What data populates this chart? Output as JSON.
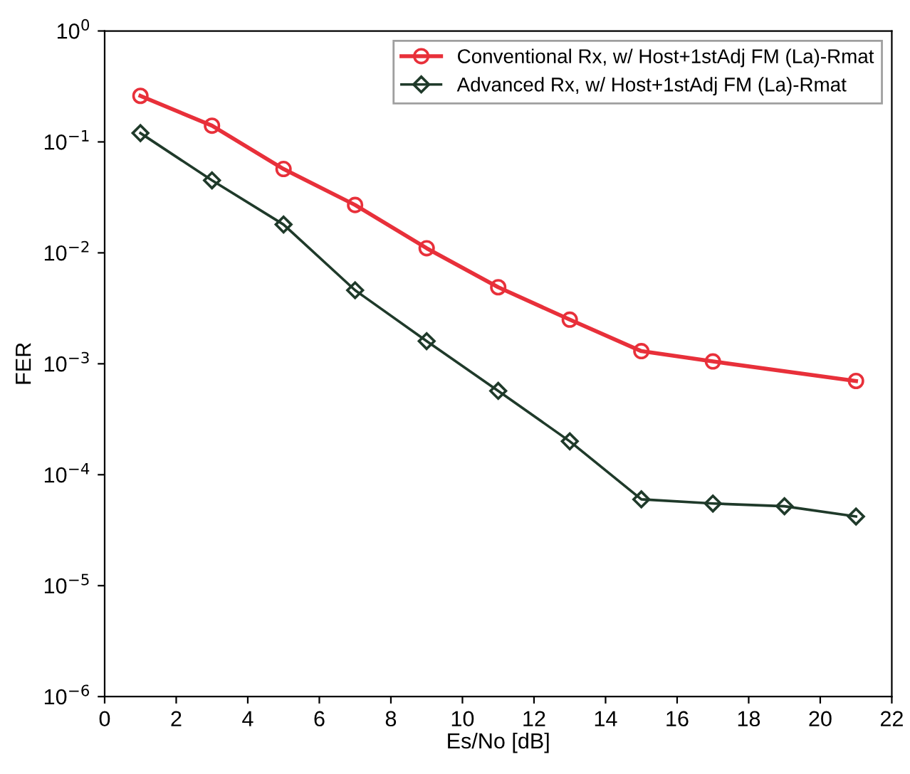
{
  "chart_data": {
    "type": "line",
    "xlabel": "Es/No [dB]",
    "ylabel": "FER",
    "log": "y",
    "xlim": [
      0,
      22
    ],
    "xticks": [
      0,
      2,
      4,
      6,
      8,
      10,
      12,
      14,
      16,
      18,
      20,
      22
    ],
    "ylim": [
      1e-06,
      1
    ],
    "yticks": [
      {
        "value": 1e-06,
        "label": "10$^{−6}$"
      },
      {
        "value": 1e-05,
        "label": "10$^{−5}$"
      },
      {
        "value": 0.0001,
        "label": "10$^{−4}$"
      },
      {
        "value": 0.001,
        "label": "10$^{−3}$"
      },
      {
        "value": 0.01,
        "label": "10$^{−2}$"
      },
      {
        "value": 0.1,
        "label": "10$^{−1}$"
      },
      {
        "value": 1,
        "label": "10$^{0}$"
      }
    ],
    "grid": false,
    "legend": "top right",
    "line_style": "solid",
    "series": [
      {
        "name": "Conventional Rx, w/ Host+1stAdj FM (La)-Rmat",
        "color": "#e8303a",
        "marker": "circle",
        "x": [
          1,
          3,
          5,
          7,
          9,
          11,
          13,
          15,
          17,
          21
        ],
        "values": [
          0.26,
          0.14,
          0.057,
          0.027,
          0.011,
          0.0049,
          0.0025,
          0.0013,
          0.00105,
          0.0007
        ]
      },
      {
        "name": "Advanced Rx, w/ Host+1stAdj FM (La)-Rmat",
        "color": "#1f3a2a",
        "marker": "diamond",
        "x": [
          1,
          3,
          5,
          7,
          9,
          11,
          13,
          15,
          17,
          19,
          21
        ],
        "values": [
          0.12,
          0.045,
          0.018,
          0.0046,
          0.0016,
          0.00057,
          0.0002,
          6e-05,
          5.5e-05,
          5.2e-05,
          4.2e-05
        ]
      }
    ]
  }
}
